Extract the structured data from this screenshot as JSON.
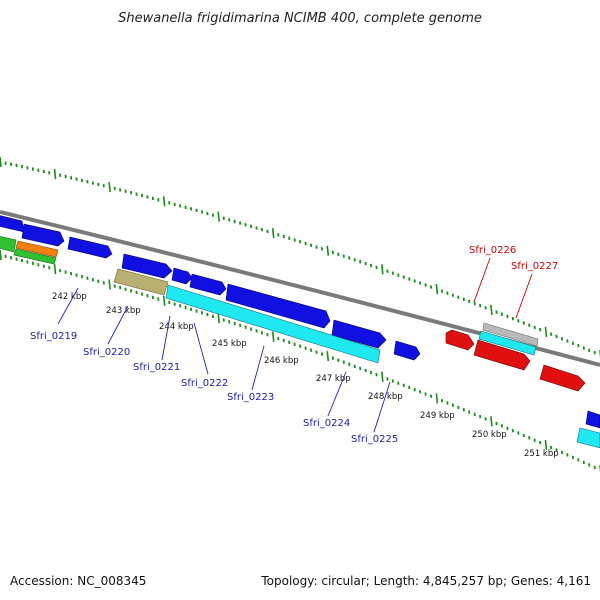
{
  "title": "Shewanella frigidimarina NCIMB 400, complete genome",
  "footer": {
    "accession": "Accession: NC_008345",
    "summary": "Topology: circular; Length: 4,845,257 bp; Genes: 4,161"
  },
  "scale_labels": [
    "242 kbp",
    "243 kbp",
    "244 kbp",
    "245 kbp",
    "246 kbp",
    "247 kbp",
    "248 kbp",
    "249 kbp",
    "250 kbp",
    "251 kbp"
  ],
  "gene_labels": [
    {
      "text": "Sfri_0219",
      "color": "blue"
    },
    {
      "text": "Sfri_0220",
      "color": "blue"
    },
    {
      "text": "Sfri_0221",
      "color": "blue"
    },
    {
      "text": "Sfri_0222",
      "color": "blue"
    },
    {
      "text": "Sfri_0223",
      "color": "blue"
    },
    {
      "text": "Sfri_0224",
      "color": "blue"
    },
    {
      "text": "Sfri_0225",
      "color": "blue"
    },
    {
      "text": "Sfri_0226",
      "color": "red"
    },
    {
      "text": "Sfri_0227",
      "color": "red"
    }
  ],
  "colors": {
    "cds_forward": "#1010e0",
    "cds_reverse": "#e01010",
    "rna": "#b8b070",
    "cyan": "#20e8f0",
    "green": "#30c030",
    "orange": "#f08010",
    "gray": "#b8b8b8",
    "backbone": "#808080",
    "ticks": "#1a8a1a"
  }
}
